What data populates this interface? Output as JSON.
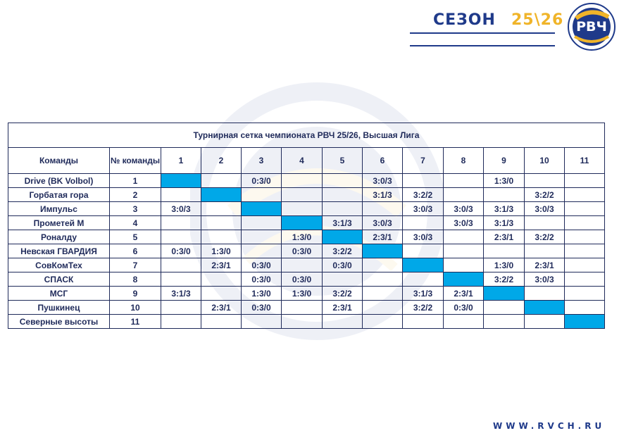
{
  "header": {
    "season_word": "СЕЗОН",
    "season_year": "25\\26",
    "logo_text": "РВЧ"
  },
  "colors": {
    "navy": "#1f3a8a",
    "gold": "#f0b429",
    "diagonal": "#00a8e8",
    "text": "#1f2a5a"
  },
  "table": {
    "title": "Турнирная сетка чемпионата РВЧ 25/26, Высшая Лига",
    "col_team": "Команды",
    "col_num": "№ команды",
    "columns": [
      "1",
      "2",
      "3",
      "4",
      "5",
      "6",
      "7",
      "8",
      "9",
      "10",
      "11"
    ],
    "rows": [
      {
        "team": "Drive (BK Volbol)",
        "num": "1",
        "cells": [
          "",
          "",
          "0:3/0",
          "",
          "",
          "3:0/3",
          "",
          "",
          "1:3/0",
          "",
          ""
        ]
      },
      {
        "team": "Горбатая гора",
        "num": "2",
        "cells": [
          "",
          "",
          "",
          "",
          "",
          "3:1/3",
          "3:2/2",
          "",
          "",
          "3:2/2",
          ""
        ]
      },
      {
        "team": "Импульс",
        "num": "3",
        "cells": [
          "3:0/3",
          "",
          "",
          "",
          "",
          "",
          "3:0/3",
          "3:0/3",
          "3:1/3",
          "3:0/3",
          ""
        ]
      },
      {
        "team": "Прометей М",
        "num": "4",
        "cells": [
          "",
          "",
          "",
          "",
          "3:1/3",
          "3:0/3",
          "",
          "3:0/3",
          "3:1/3",
          "",
          ""
        ]
      },
      {
        "team": "Роналду",
        "num": "5",
        "cells": [
          "",
          "",
          "",
          "1:3/0",
          "",
          "2:3/1",
          "3:0/3",
          "",
          "2:3/1",
          "3:2/2",
          ""
        ]
      },
      {
        "team": "Невская ГВАРДИЯ",
        "num": "6",
        "cells": [
          "0:3/0",
          "1:3/0",
          "",
          "0:3/0",
          "3:2/2",
          "",
          "",
          "",
          "",
          "",
          ""
        ]
      },
      {
        "team": "СовКомТех",
        "num": "7",
        "cells": [
          "",
          "2:3/1",
          "0:3/0",
          "",
          "0:3/0",
          "",
          "",
          "",
          "1:3/0",
          "2:3/1",
          ""
        ]
      },
      {
        "team": "СПАСК",
        "num": "8",
        "cells": [
          "",
          "",
          "0:3/0",
          "0:3/0",
          "",
          "",
          "",
          "",
          "3:2/2",
          "3:0/3",
          ""
        ]
      },
      {
        "team": "МСГ",
        "num": "9",
        "cells": [
          "3:1/3",
          "",
          "1:3/0",
          "1:3/0",
          "3:2/2",
          "",
          "3:1/3",
          "2:3/1",
          "",
          "",
          ""
        ]
      },
      {
        "team": "Пушкинец",
        "num": "10",
        "cells": [
          "",
          "2:3/1",
          "0:3/0",
          "",
          "2:3/1",
          "",
          "3:2/2",
          "0:3/0",
          "",
          "",
          ""
        ]
      },
      {
        "team": "Северные высоты",
        "num": "11",
        "cells": [
          "",
          "",
          "",
          "",
          "",
          "",
          "",
          "",
          "",
          "",
          ""
        ]
      }
    ]
  },
  "footer": {
    "url": "WWW.RVCH.RU"
  }
}
